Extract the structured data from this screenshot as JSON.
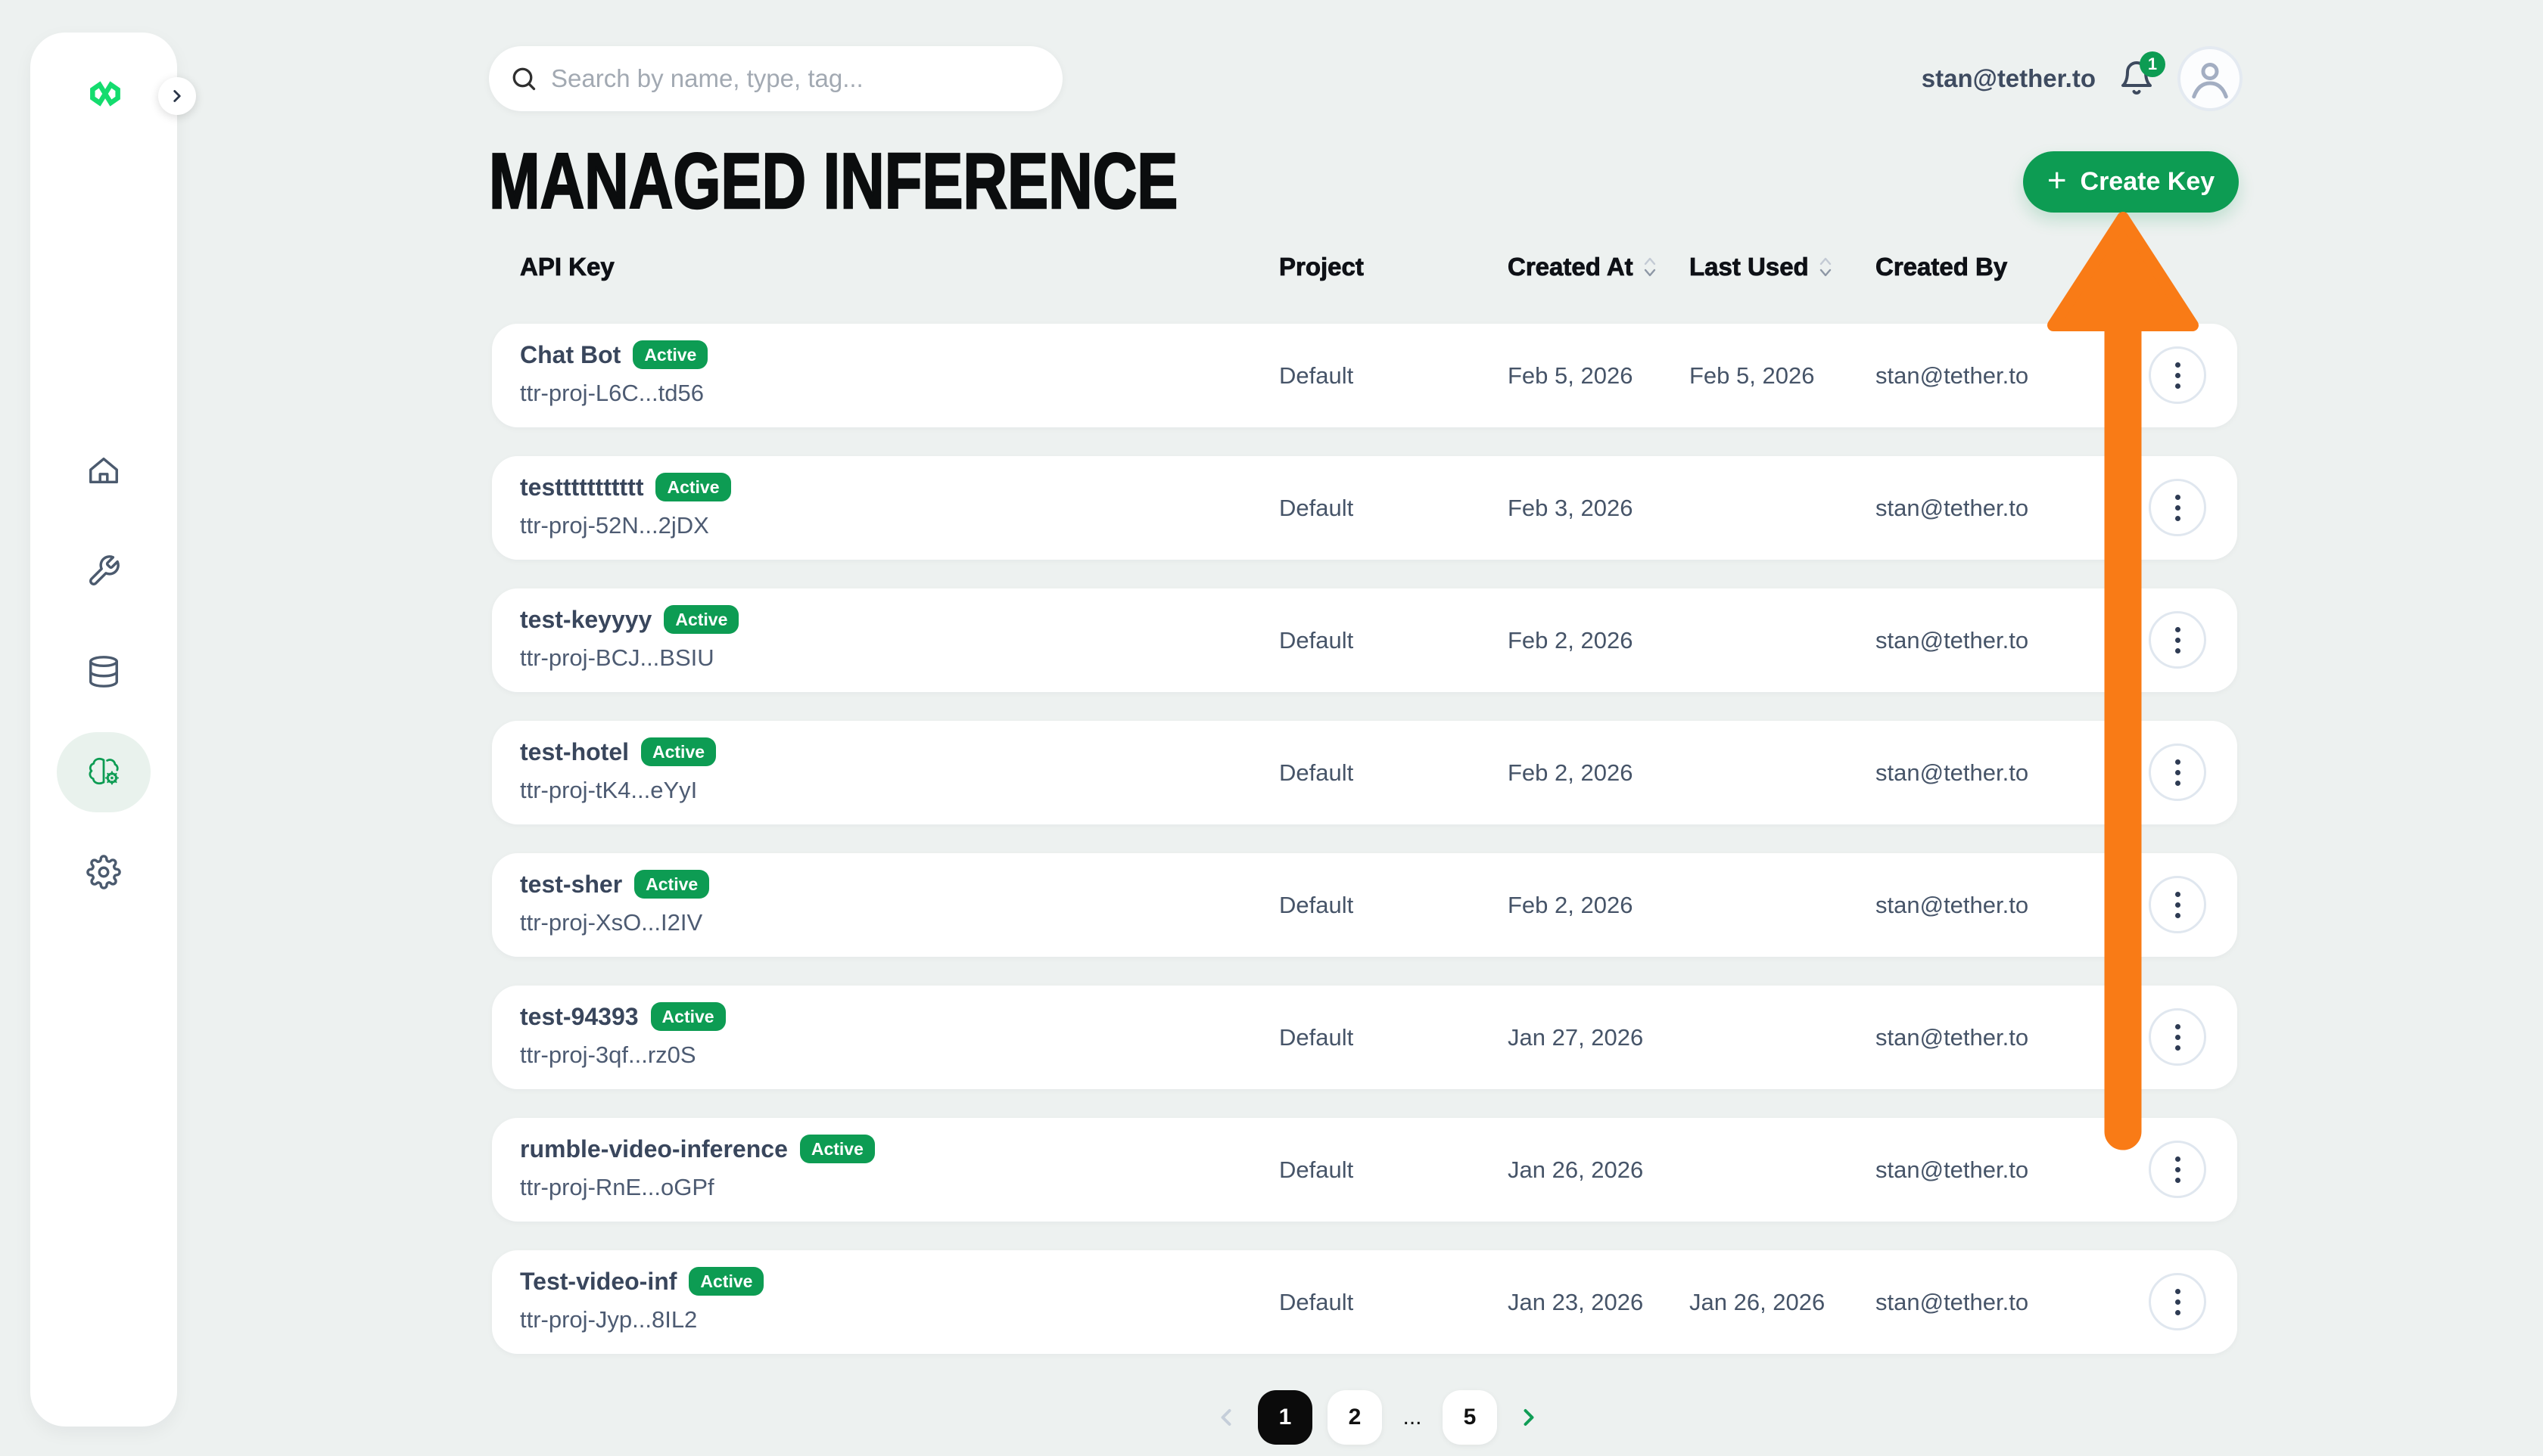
{
  "colors": {
    "page_bg": "#edf1f0",
    "accent_green": "#0d9c53",
    "logo_green": "#14dc6e",
    "annotation_orange": "#f97b16",
    "heading_color": "#0b0d0e",
    "icon_slate": "#4b5a6e"
  },
  "sidebar": {
    "logo_icon": "qvac-infinity-logo",
    "expand_icon": "chevron-right-icon",
    "items": [
      {
        "icon": "home-icon",
        "active": false
      },
      {
        "icon": "tools-icon",
        "active": false
      },
      {
        "icon": "database-icon",
        "active": false
      },
      {
        "icon": "managed-inference-brain-gear-icon",
        "active": true
      },
      {
        "icon": "settings-gear-icon",
        "active": false
      }
    ]
  },
  "topbar": {
    "search": {
      "placeholder": "Search by name, type, tag...",
      "value": "",
      "icon": "search-icon"
    },
    "user_email": "stan@tether.to",
    "notification": {
      "icon": "bell-icon",
      "badge_count": "1"
    },
    "avatar_icon": "user-avatar-icon"
  },
  "page": {
    "title": "MANAGED INFERENCE",
    "create_key": {
      "plus": "+",
      "label": "Create Key"
    }
  },
  "table": {
    "columns": [
      "API Key",
      "Project",
      "Created At",
      "Last Used",
      "Created By"
    ],
    "sortable_columns": [
      "Created At",
      "Last Used"
    ],
    "row_action_icon": "kebab-menu-icon",
    "rows": [
      {
        "name": "Chat Bot",
        "status": "Active",
        "key": "ttr-proj-L6C...td56",
        "project": "Default",
        "created_at": "Feb 5, 2026",
        "last_used": "Feb 5, 2026",
        "created_by": "stan@tether.to"
      },
      {
        "name": "testtttttttttt",
        "status": "Active",
        "key": "ttr-proj-52N...2jDX",
        "project": "Default",
        "created_at": "Feb 3, 2026",
        "last_used": "",
        "created_by": "stan@tether.to"
      },
      {
        "name": "test-keyyyy",
        "status": "Active",
        "key": "ttr-proj-BCJ...BSIU",
        "project": "Default",
        "created_at": "Feb 2, 2026",
        "last_used": "",
        "created_by": "stan@tether.to"
      },
      {
        "name": "test-hotel",
        "status": "Active",
        "key": "ttr-proj-tK4...eYyI",
        "project": "Default",
        "created_at": "Feb 2, 2026",
        "last_used": "",
        "created_by": "stan@tether.to"
      },
      {
        "name": "test-sher",
        "status": "Active",
        "key": "ttr-proj-XsO...I2IV",
        "project": "Default",
        "created_at": "Feb 2, 2026",
        "last_used": "",
        "created_by": "stan@tether.to"
      },
      {
        "name": "test-94393",
        "status": "Active",
        "key": "ttr-proj-3qf...rz0S",
        "project": "Default",
        "created_at": "Jan 27, 2026",
        "last_used": "",
        "created_by": "stan@tether.to"
      },
      {
        "name": "rumble-video-inference",
        "status": "Active",
        "key": "ttr-proj-RnE...oGPf",
        "project": "Default",
        "created_at": "Jan 26, 2026",
        "last_used": "",
        "created_by": "stan@tether.to"
      },
      {
        "name": "Test-video-inf",
        "status": "Active",
        "key": "ttr-proj-Jyp...8IL2",
        "project": "Default",
        "created_at": "Jan 23, 2026",
        "last_used": "Jan 26, 2026",
        "created_by": "stan@tether.to"
      }
    ]
  },
  "pagination": {
    "prev_icon": "chevron-left-icon",
    "pages": [
      "1",
      "2",
      "...",
      "5"
    ],
    "current_page": "1",
    "next_icon": "chevron-right-icon"
  },
  "annotation": {
    "type": "arrow",
    "direction": "up",
    "color": "#f97b16"
  }
}
